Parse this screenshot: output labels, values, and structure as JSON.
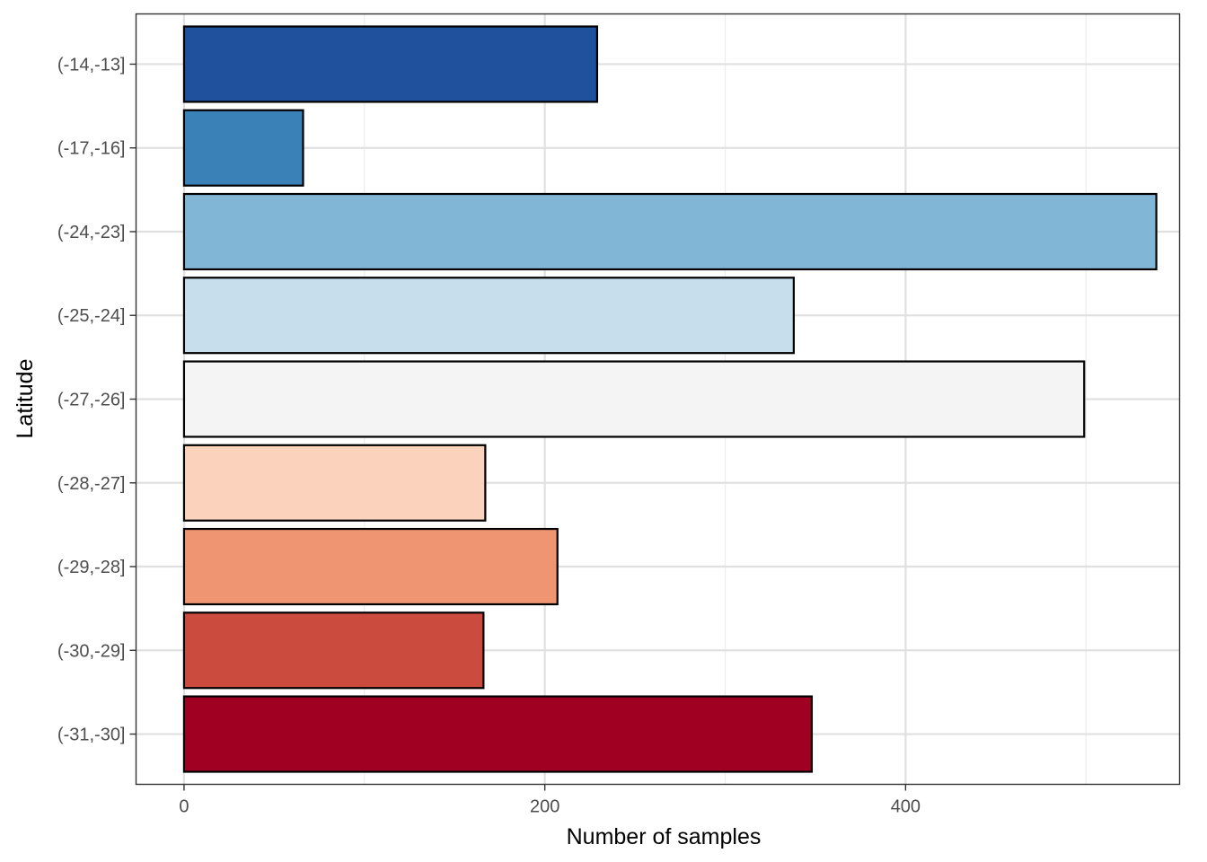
{
  "chart_data": {
    "type": "bar",
    "orientation": "horizontal",
    "title": "",
    "xlabel": "Number of samples",
    "ylabel": "Latitude",
    "categories": [
      "(-14,-13]",
      "(-17,-16]",
      "(-24,-23]",
      "(-25,-24]",
      "(-27,-26]",
      "(-28,-27]",
      "(-29,-28]",
      "(-30,-29]",
      "(-31,-30]"
    ],
    "values": [
      229,
      66,
      539,
      338,
      499,
      167,
      207,
      166,
      348
    ],
    "colors": [
      "#1F519C",
      "#3A81B8",
      "#82B6D6",
      "#C7DEEC",
      "#F4F4F4",
      "#FBD3BC",
      "#F09572",
      "#CB4C3F",
      "#A00123"
    ],
    "xlim": [
      -26.6,
      551.9
    ],
    "xticks": [
      0,
      200,
      400
    ],
    "x_minor_gridlines": [
      100,
      300,
      500
    ],
    "grid": true,
    "legend": "none"
  }
}
